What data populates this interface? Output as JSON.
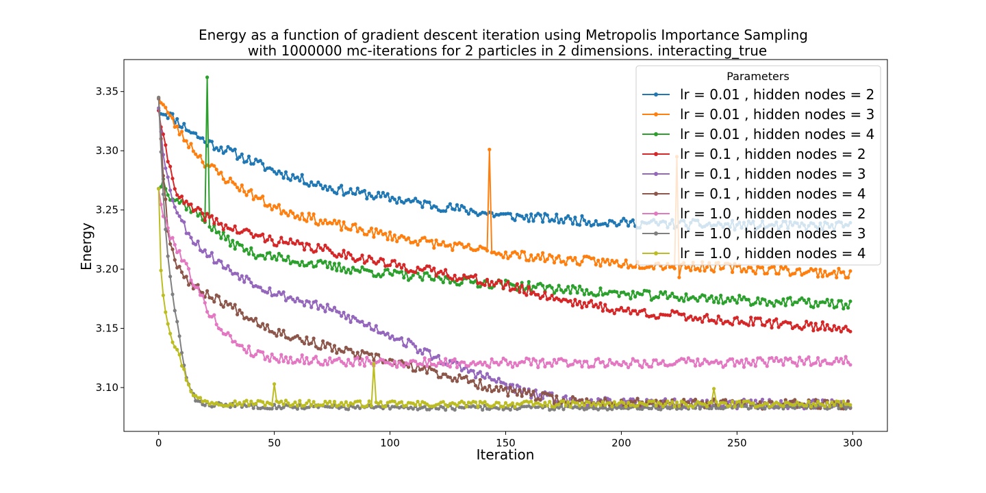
{
  "chart_data": {
    "type": "line",
    "title_line1": "Energy as a function of gradient descent iteration using Metropolis Importance Sampling",
    "title_line2": "with 1000000 mc-iterations for 2 particles in 2 dimensions. interacting_true",
    "xlabel": "Iteration",
    "ylabel": "Energy",
    "xlim": [
      -15,
      315
    ],
    "ylim": [
      3.063,
      3.377
    ],
    "xticks": [
      0,
      50,
      100,
      150,
      200,
      250,
      300
    ],
    "yticks": [
      3.1,
      3.15,
      3.2,
      3.25,
      3.3,
      3.35
    ],
    "grid": false,
    "legend_title": "Parameters",
    "legend_position": "upper-right",
    "n_points": 300,
    "series": [
      {
        "name": "lr = 0.01 , hidden nodes = 2",
        "color": "#1f77b4",
        "x": [
          0,
          5,
          10,
          20,
          30,
          50,
          75,
          100,
          125,
          150,
          175,
          200,
          250,
          299
        ],
        "values": [
          3.334,
          3.33,
          3.322,
          3.308,
          3.3,
          3.283,
          3.268,
          3.26,
          3.252,
          3.245,
          3.242,
          3.239,
          3.237,
          3.236
        ],
        "noise": 0.004,
        "seed": 11,
        "spikes": []
      },
      {
        "name": "lr = 0.01 , hidden nodes = 3",
        "color": "#ff7f0e",
        "x": [
          0,
          2,
          5,
          10,
          20,
          30,
          50,
          75,
          100,
          125,
          150,
          175,
          200,
          250,
          299
        ],
        "values": [
          3.345,
          3.34,
          3.328,
          3.313,
          3.29,
          3.275,
          3.252,
          3.238,
          3.228,
          3.22,
          3.213,
          3.208,
          3.205,
          3.201,
          3.196
        ],
        "noise": 0.004,
        "seed": 23,
        "spikes": [
          {
            "x": 143,
            "value": 3.301
          },
          {
            "x": 224,
            "value": 3.295
          },
          {
            "x": 225,
            "value": 3.193
          }
        ]
      },
      {
        "name": "lr = 0.01 , hidden nodes = 4",
        "color": "#2ca02c",
        "x": [
          0,
          2,
          5,
          10,
          15,
          20,
          30,
          40,
          50,
          75,
          100,
          125,
          150,
          175,
          200,
          250,
          299
        ],
        "values": [
          3.268,
          3.275,
          3.262,
          3.256,
          3.25,
          3.24,
          3.224,
          3.214,
          3.21,
          3.202,
          3.196,
          3.191,
          3.187,
          3.183,
          3.179,
          3.174,
          3.17
        ],
        "noise": 0.004,
        "seed": 37,
        "spikes": [
          {
            "x": 21,
            "value": 3.362
          }
        ]
      },
      {
        "name": "lr = 0.1 , hidden nodes = 2",
        "color": "#d62728",
        "x": [
          0,
          2,
          5,
          8,
          10,
          15,
          20,
          30,
          50,
          75,
          100,
          125,
          150,
          175,
          200,
          250,
          299
        ],
        "values": [
          3.334,
          3.31,
          3.285,
          3.265,
          3.258,
          3.25,
          3.245,
          3.235,
          3.224,
          3.215,
          3.204,
          3.196,
          3.186,
          3.174,
          3.165,
          3.156,
          3.15
        ],
        "noise": 0.004,
        "seed": 41,
        "spikes": []
      },
      {
        "name": "lr = 0.1 , hidden nodes = 3",
        "color": "#9467bd",
        "x": [
          0,
          2,
          5,
          8,
          10,
          15,
          20,
          30,
          50,
          75,
          100,
          120,
          140,
          160,
          180,
          200,
          250,
          299
        ],
        "values": [
          3.336,
          3.3,
          3.265,
          3.25,
          3.24,
          3.225,
          3.215,
          3.2,
          3.18,
          3.165,
          3.145,
          3.125,
          3.11,
          3.095,
          3.088,
          3.087,
          3.086,
          3.086
        ],
        "noise": 0.004,
        "seed": 53,
        "spikes": []
      },
      {
        "name": "lr = 0.1 , hidden nodes = 4",
        "color": "#8c564b",
        "x": [
          0,
          2,
          4,
          6,
          8,
          10,
          15,
          20,
          30,
          50,
          75,
          100,
          125,
          150,
          175,
          200,
          250,
          299
        ],
        "values": [
          3.344,
          3.28,
          3.235,
          3.215,
          3.205,
          3.198,
          3.185,
          3.18,
          3.17,
          3.148,
          3.133,
          3.122,
          3.11,
          3.097,
          3.089,
          3.087,
          3.086,
          3.086
        ],
        "noise": 0.004,
        "seed": 67,
        "spikes": []
      },
      {
        "name": "lr = 1.0 , hidden nodes = 2",
        "color": "#e377c2",
        "x": [
          0,
          2,
          4,
          6,
          8,
          10,
          15,
          20,
          25,
          30,
          40,
          50,
          75,
          100,
          125,
          150,
          175,
          200,
          250,
          299
        ],
        "values": [
          3.268,
          3.245,
          3.234,
          3.225,
          3.218,
          3.21,
          3.19,
          3.17,
          3.155,
          3.143,
          3.13,
          3.125,
          3.122,
          3.121,
          3.121,
          3.121,
          3.121,
          3.121,
          3.121,
          3.123
        ],
        "noise": 0.004,
        "seed": 79,
        "spikes": []
      },
      {
        "name": "lr = 1.0 , hidden nodes = 3",
        "color": "#7f7f7f",
        "x": [
          0,
          1,
          2,
          3,
          4,
          5,
          6,
          8,
          10,
          12,
          14,
          16,
          20,
          30,
          50,
          100,
          150,
          200,
          250,
          299
        ],
        "values": [
          3.345,
          3.3,
          3.262,
          3.233,
          3.21,
          3.193,
          3.178,
          3.155,
          3.13,
          3.108,
          3.096,
          3.09,
          3.086,
          3.085,
          3.084,
          3.083,
          3.083,
          3.083,
          3.084,
          3.084
        ],
        "noise": 0.002,
        "seed": 83,
        "spikes": []
      },
      {
        "name": "lr = 1.0 , hidden nodes = 4",
        "color": "#bcbd22",
        "x": [
          0,
          1,
          2,
          3,
          4,
          5,
          6,
          8,
          10,
          12,
          14,
          16,
          20,
          30,
          50,
          100,
          150,
          200,
          250,
          299
        ],
        "values": [
          3.268,
          3.2,
          3.18,
          3.165,
          3.155,
          3.148,
          3.14,
          3.132,
          3.12,
          3.108,
          3.098,
          3.092,
          3.088,
          3.087,
          3.087,
          3.086,
          3.086,
          3.086,
          3.086,
          3.086
        ],
        "noise": 0.0025,
        "seed": 97,
        "spikes": [
          {
            "x": 93,
            "value": 3.12
          },
          {
            "x": 50,
            "value": 3.103
          },
          {
            "x": 240,
            "value": 3.099
          }
        ]
      }
    ]
  }
}
